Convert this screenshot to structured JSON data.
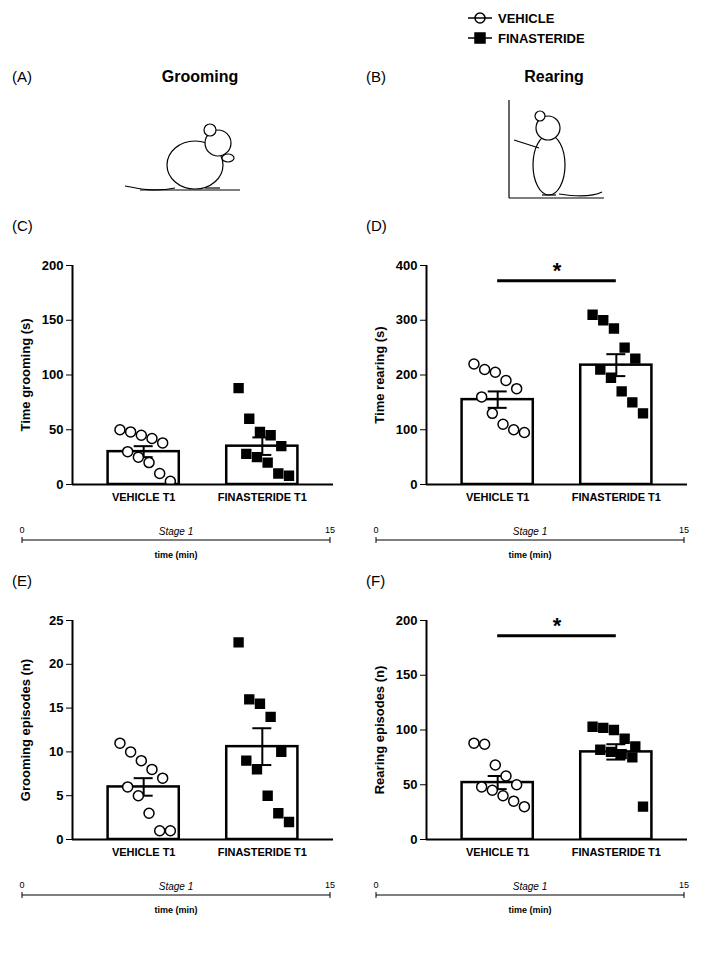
{
  "legend": {
    "position": "top-right",
    "entries": [
      {
        "name": "VEHICLE",
        "marker": "circle",
        "color": "#ffffff"
      },
      {
        "name": "FINASTERIDE",
        "marker": "square",
        "color": "#000000"
      }
    ]
  },
  "headers": [
    {
      "label": "(A)",
      "title": "Grooming"
    },
    {
      "label": "(B)",
      "title": "Rearing"
    }
  ],
  "chart_data": [
    {
      "panel": "(C)",
      "type": "bar",
      "ylabel": "Time grooming (s)",
      "categories": [
        "VEHICLE T1",
        "FINASTERIDE T1"
      ],
      "values": [
        30,
        35
      ],
      "errors": [
        5,
        8
      ],
      "points": [
        [
          50,
          48,
          45,
          42,
          38,
          30,
          25,
          20,
          10,
          3
        ],
        [
          88,
          60,
          48,
          45,
          35,
          28,
          25,
          20,
          10,
          8
        ]
      ],
      "color": "#ffffff",
      "ylim": [
        0,
        200
      ],
      "yticks": [
        0,
        50,
        100,
        150,
        200
      ],
      "timeline": {
        "label": "Stage 1",
        "xlabel": "time (min)",
        "xlim": [
          0,
          15
        ],
        "xticks": [
          0,
          15
        ]
      }
    },
    {
      "panel": "(D)",
      "type": "bar",
      "ylabel": "Time rearing (s)",
      "categories": [
        "VEHICLE T1",
        "FINASTERIDE T1"
      ],
      "values": [
        155,
        218
      ],
      "errors": [
        15,
        20
      ],
      "points": [
        [
          220,
          210,
          205,
          190,
          175,
          160,
          130,
          110,
          100,
          95
        ],
        [
          310,
          300,
          285,
          250,
          230,
          210,
          195,
          170,
          150,
          130
        ]
      ],
      "color": "#ffffff",
      "ylim": [
        0,
        400
      ],
      "yticks": [
        0,
        100,
        200,
        300,
        400
      ],
      "annotation": "*",
      "timeline": {
        "label": "Stage 1",
        "xlabel": "time (min)",
        "xlim": [
          0,
          15
        ],
        "xticks": [
          0,
          15
        ]
      }
    },
    {
      "panel": "(E)",
      "type": "bar",
      "ylabel": "Grooming episodes (n)",
      "categories": [
        "VEHICLE T1",
        "FINASTERIDE T1"
      ],
      "values": [
        6,
        10.6
      ],
      "errors": [
        1,
        2.1
      ],
      "points": [
        [
          11,
          10,
          9,
          8,
          7,
          6,
          5,
          3,
          1,
          1
        ],
        [
          22.5,
          16,
          15.5,
          14,
          10,
          9,
          8,
          5,
          3,
          2
        ]
      ],
      "color": "#ffffff",
      "ylim": [
        0,
        25
      ],
      "yticks": [
        0,
        5,
        10,
        15,
        20,
        25
      ],
      "timeline": {
        "label": "Stage 1",
        "xlabel": "time (min)",
        "xlim": [
          0,
          15
        ],
        "xticks": [
          0,
          15
        ]
      }
    },
    {
      "panel": "(F)",
      "type": "bar",
      "ylabel": "Rearing episodes (n)",
      "categories": [
        "VEHICLE T1",
        "FINASTERIDE T1"
      ],
      "values": [
        52,
        80
      ],
      "errors": [
        6,
        7
      ],
      "points": [
        [
          88,
          87,
          68,
          58,
          50,
          48,
          45,
          40,
          35,
          30
        ],
        [
          103,
          102,
          100,
          92,
          85,
          82,
          80,
          78,
          75,
          30
        ]
      ],
      "color": "#ffffff",
      "ylim": [
        0,
        200
      ],
      "yticks": [
        0,
        50,
        100,
        150,
        200
      ],
      "annotation": "*",
      "timeline": {
        "label": "Stage 1",
        "xlabel": "time (min)",
        "xlim": [
          0,
          15
        ],
        "xticks": [
          0,
          15
        ]
      }
    }
  ]
}
